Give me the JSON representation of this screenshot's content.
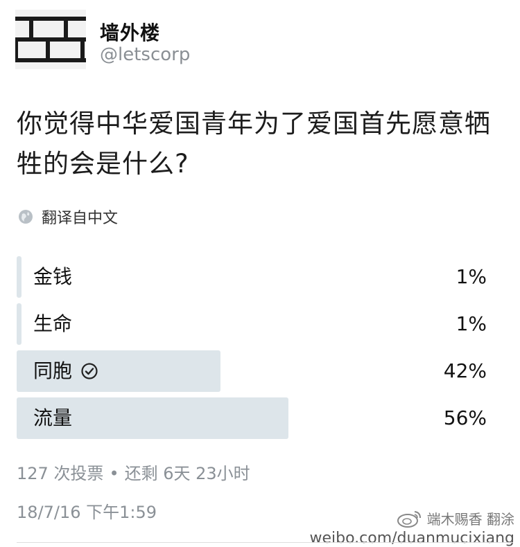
{
  "account": {
    "name": "墙外楼",
    "handle": "@letscorp",
    "avatar_icon": "brick-wall-icon"
  },
  "tweet": {
    "question": "你觉得中华爱国青年为了爱国首先愿意牺牲的会是什么?",
    "translate_label": "翻译自中文",
    "translate_icon": "globe-icon"
  },
  "poll": {
    "options": [
      {
        "label": "金钱",
        "percent": "1%",
        "fraction": 0.01,
        "selected": false
      },
      {
        "label": "生命",
        "percent": "1%",
        "fraction": 0.01,
        "selected": false
      },
      {
        "label": "同胞",
        "percent": "42%",
        "fraction": 0.42,
        "selected": true
      },
      {
        "label": "流量",
        "percent": "56%",
        "fraction": 0.56,
        "selected": false
      }
    ],
    "bar_color": "#dde5ea",
    "votes": "127 次投票",
    "separator": "•",
    "remaining": "还剩 6天 23小时"
  },
  "timestamp": "18/7/16 下午1:59",
  "watermark": {
    "name": "端木赐香 翻涂",
    "url": "weibo.com/duanmucixiang",
    "logo_icon": "weibo-logo-icon"
  }
}
